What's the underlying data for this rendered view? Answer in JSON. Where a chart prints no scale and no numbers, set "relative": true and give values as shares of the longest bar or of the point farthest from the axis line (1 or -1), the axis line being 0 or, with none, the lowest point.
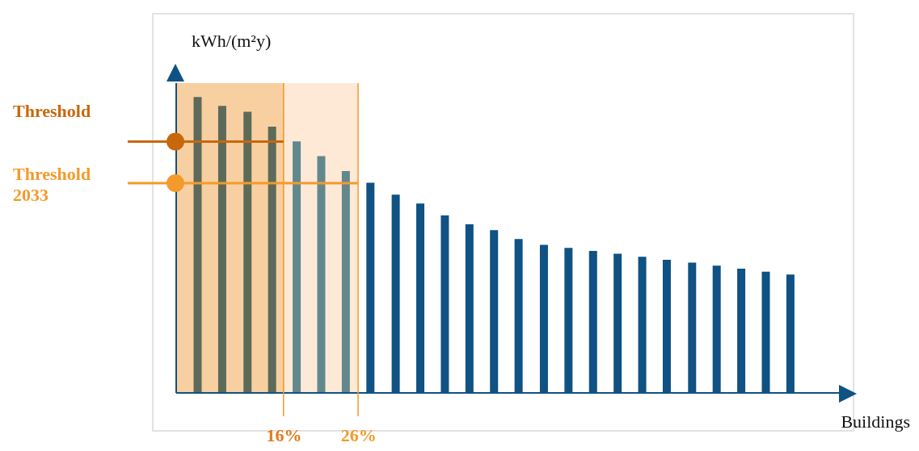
{
  "chart_data": {
    "type": "bar",
    "relative": true,
    "ylabel": "kWh/(m²y)",
    "xlabel": "Buildings",
    "x": [
      4.4,
      7.7,
      11.1,
      14.4,
      17.7,
      21.0,
      24.3,
      27.6,
      31.0,
      34.3,
      37.6,
      40.9,
      44.2,
      47.5,
      50.9,
      54.2,
      57.5,
      60.8,
      64.1,
      67.4,
      70.8,
      74.1,
      77.4,
      80.7,
      84.0
    ],
    "xlim": [
      1.5,
      90.5
    ],
    "xticks": [
      {
        "value": 16,
        "label": "16%"
      },
      {
        "value": 26,
        "label": "26%"
      }
    ],
    "values": [
      1,
      0.97,
      0.95,
      0.9,
      0.85,
      0.8,
      0.75,
      0.71,
      0.67,
      0.64,
      0.6,
      0.57,
      0.55,
      0.52,
      0.5,
      0.49,
      0.48,
      0.47,
      0.46,
      0.45,
      0.44,
      0.43,
      0.42,
      0.41,
      0.4
    ],
    "colors": [
      "#5d6a5a",
      "#5d6a5a",
      "#5d6a5a",
      "#5d6a5a",
      "#62888e",
      "#62888e",
      "#62888e",
      "#0f5283",
      "#0f5283",
      "#0f5283",
      "#0f5283",
      "#0f5283",
      "#0f5283",
      "#0f5283",
      "#0f5283",
      "#0f5283",
      "#0f5283",
      "#0f5283",
      "#0f5283",
      "#0f5283",
      "#0f5283",
      "#0f5283",
      "#0f5283",
      "#0f5283",
      "#0f5283"
    ],
    "bands": [
      {
        "axis": "x",
        "from": 1.5,
        "to": 26,
        "color": "#fde9d6"
      },
      {
        "axis": "x",
        "from": 1.5,
        "to": 16,
        "color": "#f8cfa0"
      }
    ],
    "ref_lines": [
      {
        "axis": "y",
        "value": 0.85,
        "label": "Threshold",
        "color": "#c8680c"
      },
      {
        "axis": "y",
        "value": 0.71,
        "label": "Threshold 2033",
        "color": "#f39a2b"
      }
    ]
  }
}
